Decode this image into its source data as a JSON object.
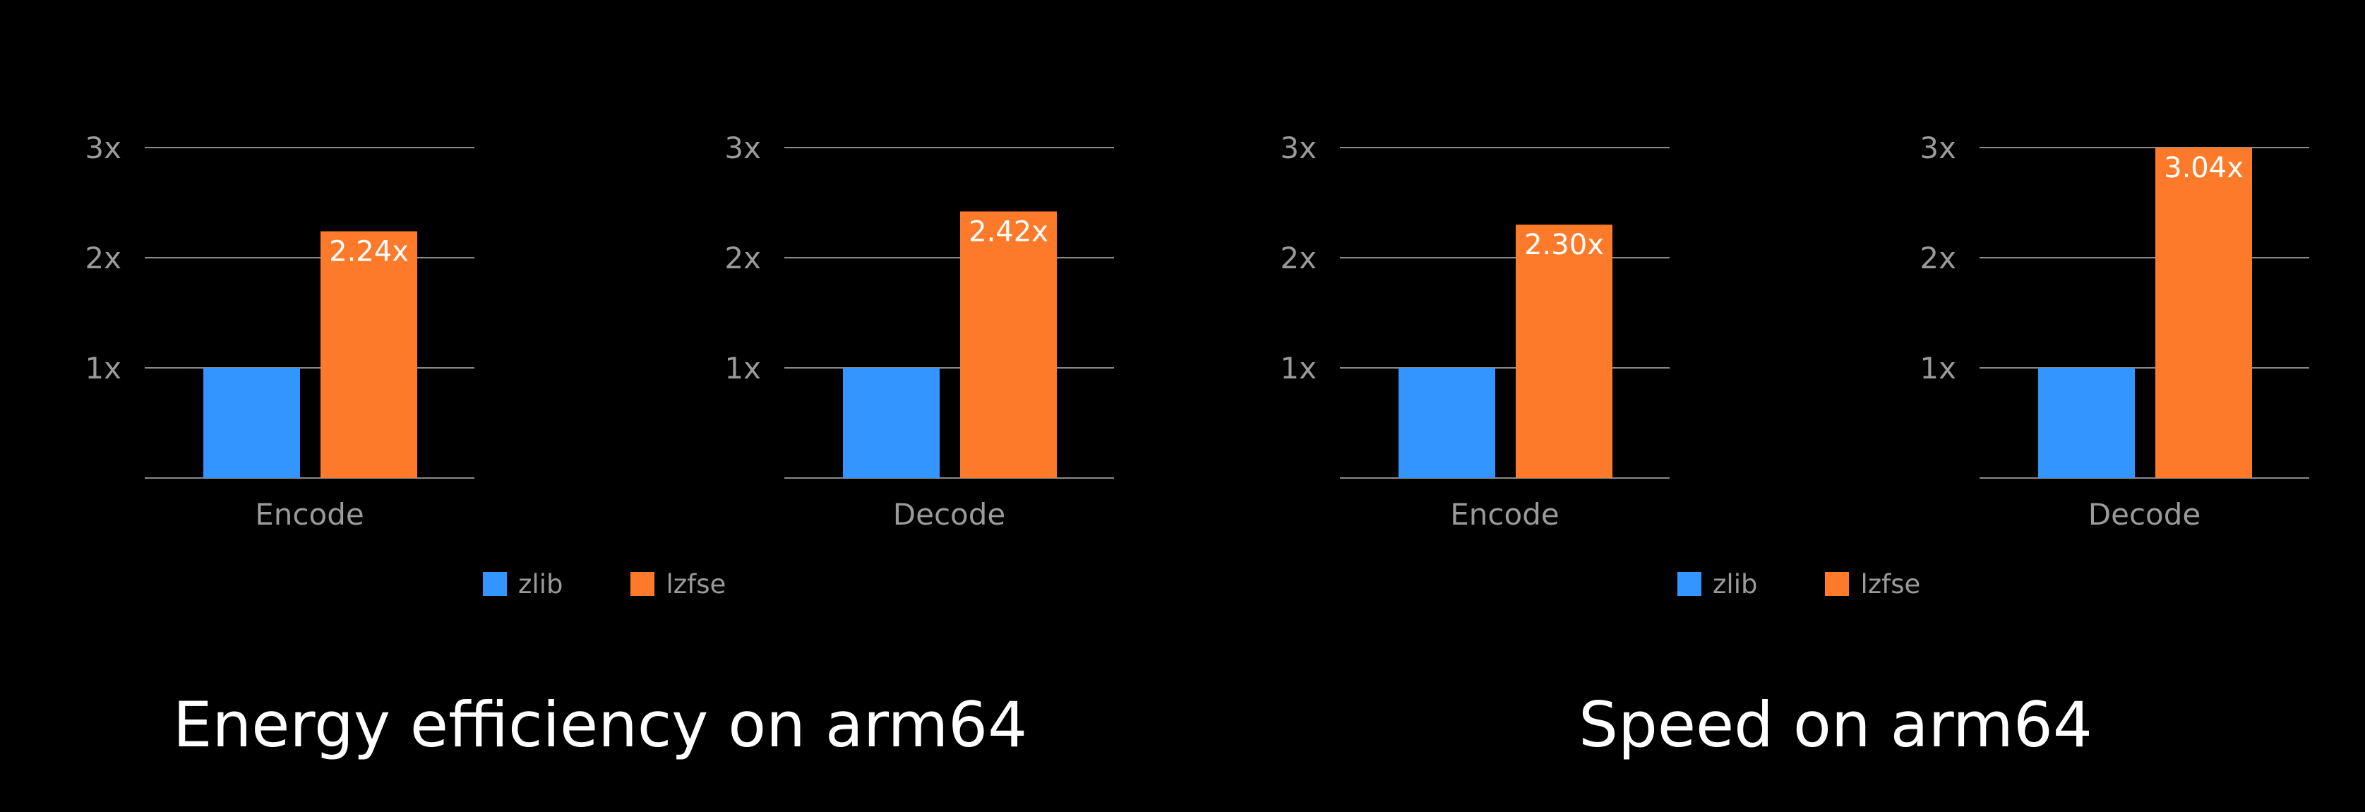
{
  "colors": {
    "background": "#000000",
    "zlib": "#3395FF",
    "lzfse": "#FD7A2A",
    "gridline": "#8a8a8a",
    "axis_text": "#9a9a9a",
    "title_text": "#ffffff"
  },
  "groups": [
    {
      "title": "Energy efficiency on arm64",
      "legend": [
        {
          "label": "zlib",
          "color": "#3395FF"
        },
        {
          "label": "lzfse",
          "color": "#FD7A2A"
        }
      ]
    },
    {
      "title": "Speed on arm64",
      "legend": [
        {
          "label": "zlib",
          "color": "#3395FF"
        },
        {
          "label": "lzfse",
          "color": "#FD7A2A"
        }
      ]
    }
  ],
  "chart_data": [
    {
      "type": "bar",
      "group": "Energy efficiency on arm64",
      "categories": [
        "Encode"
      ],
      "series": [
        {
          "name": "zlib",
          "values": [
            1.0
          ]
        },
        {
          "name": "lzfse",
          "values": [
            2.24
          ]
        }
      ],
      "data_labels": [
        "",
        "2.24x"
      ],
      "yticks": [
        "1x",
        "2x",
        "3x"
      ],
      "ylim": [
        0,
        3
      ],
      "grid": true
    },
    {
      "type": "bar",
      "group": "Energy efficiency on arm64",
      "categories": [
        "Decode"
      ],
      "series": [
        {
          "name": "zlib",
          "values": [
            1.0
          ]
        },
        {
          "name": "lzfse",
          "values": [
            2.42
          ]
        }
      ],
      "data_labels": [
        "",
        "2.42x"
      ],
      "yticks": [
        "1x",
        "2x",
        "3x"
      ],
      "ylim": [
        0,
        3
      ],
      "grid": true
    },
    {
      "type": "bar",
      "group": "Speed on arm64",
      "categories": [
        "Encode"
      ],
      "series": [
        {
          "name": "zlib",
          "values": [
            1.0
          ]
        },
        {
          "name": "lzfse",
          "values": [
            2.3
          ]
        }
      ],
      "data_labels": [
        "",
        "2.30x"
      ],
      "yticks": [
        "1x",
        "2x",
        "3x"
      ],
      "ylim": [
        0,
        3
      ],
      "grid": true
    },
    {
      "type": "bar",
      "group": "Speed on arm64",
      "categories": [
        "Decode"
      ],
      "series": [
        {
          "name": "zlib",
          "values": [
            1.0
          ]
        },
        {
          "name": "lzfse",
          "values": [
            3.04
          ]
        }
      ],
      "data_labels": [
        "",
        "3.04x"
      ],
      "yticks": [
        "1x",
        "2x",
        "3x"
      ],
      "ylim": [
        0,
        3
      ],
      "grid": true
    }
  ]
}
